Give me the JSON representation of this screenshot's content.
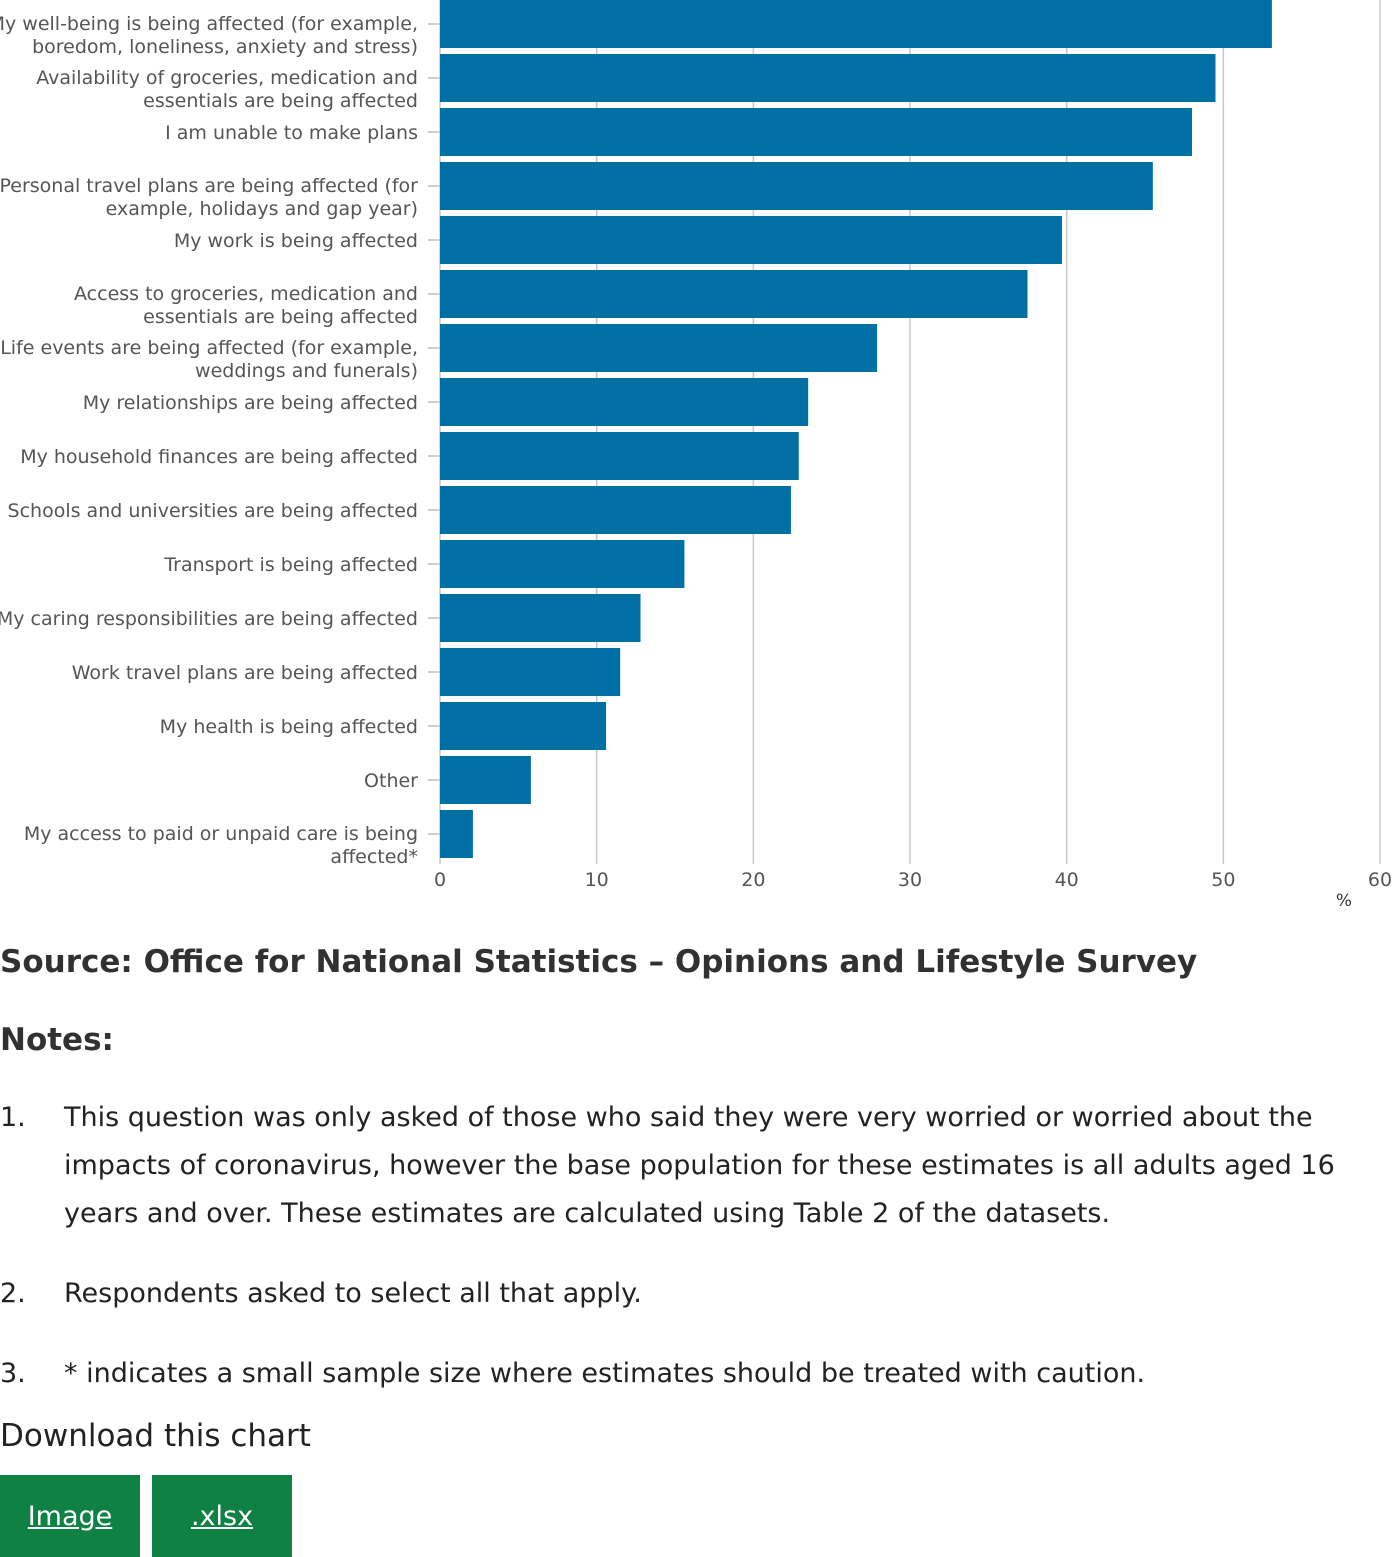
{
  "chart_data": {
    "type": "bar",
    "orientation": "horizontal",
    "categories": [
      "My well-being is being affected (for example, boredom, loneliness, anxiety and stress)",
      "Availability of groceries, medication and essentials are being affected",
      "I am unable to make plans",
      "Personal travel plans are being affected (for example, holidays and gap year)",
      "My work is being affected",
      "Access to groceries, medication and essentials are being affected",
      "Life events are being affected (for example, weddings and funerals)",
      "My relationships are being affected",
      "My household finances are being affected",
      "Schools and universities are being affected",
      "Transport is being affected",
      "My caring responsibilities are being affected",
      "Work travel plans are being affected",
      "My health is being affected",
      "Other",
      "My access to paid or unpaid care is being affected*"
    ],
    "category_lines": [
      [
        "My well-being is being affected (for example,",
        "boredom, loneliness, anxiety and stress)"
      ],
      [
        "Availability of groceries, medication and",
        "essentials are being affected"
      ],
      [
        "I am unable to make plans"
      ],
      [
        "Personal travel plans are being affected (for",
        "example, holidays and gap year)"
      ],
      [
        "My work is being affected"
      ],
      [
        "Access to groceries, medication and",
        "essentials are being affected"
      ],
      [
        "Life events are being affected (for example,",
        "weddings and funerals)"
      ],
      [
        "My relationships are being affected"
      ],
      [
        "My household finances are being affected"
      ],
      [
        "Schools and universities are being affected"
      ],
      [
        "Transport is being affected"
      ],
      [
        "My caring responsibilities are being affected"
      ],
      [
        "Work travel plans are being affected"
      ],
      [
        "My health is being affected"
      ],
      [
        "Other"
      ],
      [
        "My access to paid or unpaid care is being",
        "affected*"
      ]
    ],
    "values": [
      53.1,
      49.5,
      48.0,
      45.5,
      39.7,
      37.5,
      27.9,
      23.5,
      22.9,
      22.4,
      15.6,
      12.8,
      11.5,
      10.6,
      5.8,
      2.1
    ],
    "xlim": [
      0,
      60
    ],
    "xticks": [
      0,
      10,
      20,
      30,
      40,
      50,
      60
    ],
    "xlabel": "%",
    "grid": true,
    "bar_color": "#0070a4"
  },
  "source": "Source: Office for National Statistics – Opinions and Lifestyle Survey",
  "notes_heading": "Notes:",
  "notes": [
    {
      "num": "1.",
      "text": "This question was only asked of those who said they were very worried or worried about the impacts of coronavirus, however the base population for these estimates is all adults aged 16 years and over. These estimates are calculated using Table 2 of the datasets."
    },
    {
      "num": "2.",
      "text": "Respondents asked to select all that apply."
    },
    {
      "num": "3.",
      "text": "* indicates a small sample size where estimates should be treated with caution."
    }
  ],
  "download": {
    "title": "Download this chart",
    "image_label": "Image",
    "xlsx_label": ".xlsx"
  }
}
